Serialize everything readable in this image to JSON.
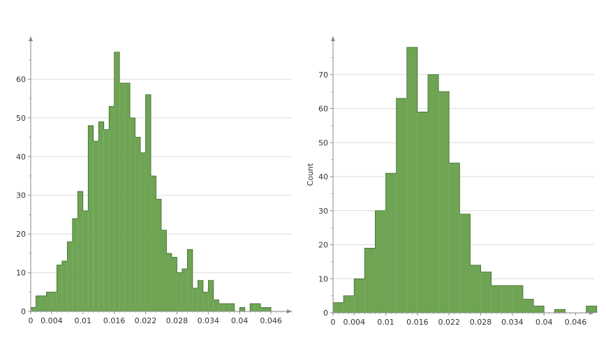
{
  "colors": {
    "bar_fill": "#6ea454",
    "bar_stroke": "#3f6b2c",
    "axis": "#8a8a8a",
    "grid": "#dcdcdc",
    "text": "#333333"
  },
  "chart_data": [
    {
      "type": "bar",
      "variant": "histogram",
      "ylabel": "",
      "xlabel": "",
      "grid": true,
      "legend": "none",
      "xlim": [
        0,
        0.05
      ],
      "ylim": [
        0,
        70
      ],
      "x_ticks": [
        0,
        0.004,
        0.01,
        0.016,
        0.022,
        0.028,
        0.034,
        0.04,
        0.046
      ],
      "x_tick_labels": [
        "0",
        "0.004",
        "0.01",
        "0.016",
        "0.022",
        "0.028",
        "0.034",
        "0.04",
        "0.046"
      ],
      "y_ticks": [
        0,
        10,
        20,
        30,
        40,
        50,
        60
      ],
      "y_tick_labels": [
        "0",
        "10",
        "20",
        "30",
        "40",
        "50",
        "60"
      ],
      "bin_start": 0,
      "bin_width": 0.001,
      "values": [
        1,
        4,
        4,
        5,
        5,
        12,
        13,
        18,
        24,
        31,
        26,
        48,
        44,
        49,
        47,
        53,
        67,
        59,
        59,
        50,
        45,
        41,
        56,
        35,
        29,
        21,
        15,
        14,
        10,
        11,
        16,
        6,
        8,
        5,
        8,
        3,
        2,
        2,
        2,
        0,
        1,
        0,
        2,
        2,
        1,
        1,
        0,
        0,
        0
      ]
    },
    {
      "type": "bar",
      "variant": "histogram",
      "ylabel": "Count",
      "xlabel": "",
      "grid": true,
      "legend": "none",
      "xlim": [
        0,
        0.0495
      ],
      "ylim": [
        0,
        80
      ],
      "x_ticks": [
        0,
        0.004,
        0.01,
        0.016,
        0.022,
        0.028,
        0.034,
        0.04,
        0.046
      ],
      "x_tick_labels": [
        "0",
        "0.004",
        "0.01",
        "0.016",
        "0.022",
        "0.028",
        "0.034",
        "0.04",
        "0.046"
      ],
      "y_ticks": [
        0,
        10,
        20,
        30,
        40,
        50,
        60,
        70
      ],
      "y_tick_labels": [
        "0",
        "10",
        "20",
        "30",
        "40",
        "50",
        "60",
        "70"
      ],
      "bin_start": 0,
      "bin_width": 0.002,
      "values": [
        3,
        5,
        10,
        19,
        30,
        41,
        63,
        78,
        59,
        70,
        65,
        44,
        29,
        14,
        12,
        8,
        8,
        8,
        4,
        2,
        0,
        1,
        0,
        0,
        2
      ]
    }
  ]
}
